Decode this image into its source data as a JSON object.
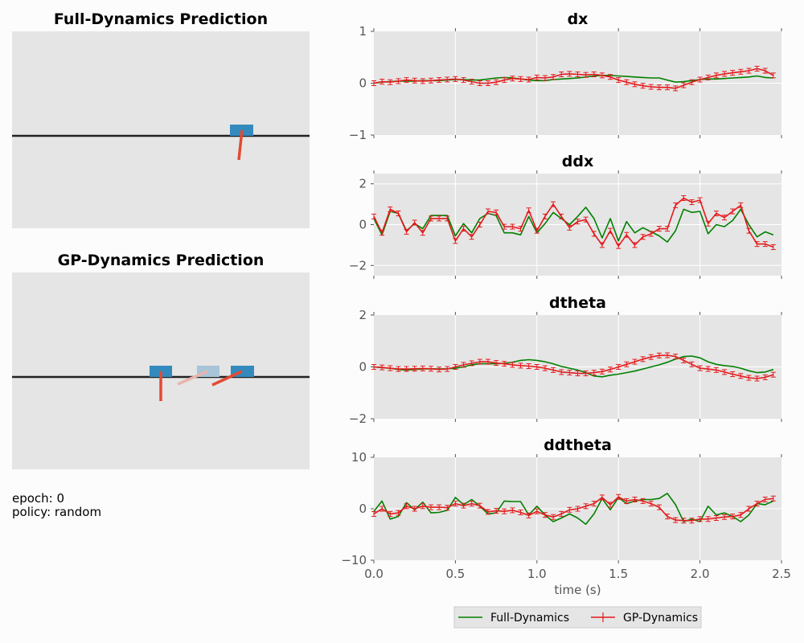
{
  "sim_panels": {
    "full": {
      "title": "Full-Dynamics Prediction"
    },
    "gp": {
      "title": "GP-Dynamics Prediction"
    }
  },
  "info": {
    "epoch": "epoch: 0",
    "policy": "policy: random"
  },
  "colors": {
    "axes_bg": "#e5e5e5",
    "full_dynamics": "#008000",
    "gp_dynamics": "#e41a1c",
    "cart": "#348abd",
    "cart_ghost": "#a7c4d8",
    "pole": "#e24a33",
    "pole_ghost": "#e8b4ac",
    "track": "#222222"
  },
  "chart_data": [
    {
      "type": "line",
      "title": "dx",
      "ylim": [
        -1,
        1
      ],
      "yticks": [
        "1",
        "0",
        "−1"
      ],
      "grid": true,
      "series": [
        {
          "name": "Full-Dynamics",
          "x": [
            0,
            0.05,
            0.1,
            0.15,
            0.2,
            0.25,
            0.3,
            0.35,
            0.4,
            0.45,
            0.5,
            0.55,
            0.6,
            0.65,
            0.7,
            0.75,
            0.8,
            0.85,
            0.9,
            0.95,
            1.0,
            1.05,
            1.1,
            1.15,
            1.2,
            1.25,
            1.3,
            1.35,
            1.4,
            1.45,
            1.5,
            1.55,
            1.6,
            1.65,
            1.7,
            1.75,
            1.8,
            1.85,
            1.9,
            1.95,
            2.0,
            2.05,
            2.1,
            2.15,
            2.2,
            2.25,
            2.3,
            2.35,
            2.4,
            2.45
          ],
          "y": [
            0,
            0.02,
            0.03,
            0.04,
            0.04,
            0.04,
            0.05,
            0.05,
            0.05,
            0.06,
            0.07,
            0.07,
            0.06,
            0.06,
            0.08,
            0.1,
            0.11,
            0.1,
            0.08,
            0.06,
            0.05,
            0.05,
            0.07,
            0.08,
            0.09,
            0.1,
            0.12,
            0.14,
            0.15,
            0.15,
            0.14,
            0.13,
            0.12,
            0.11,
            0.1,
            0.1,
            0.06,
            0.02,
            0.03,
            0.05,
            0.07,
            0.08,
            0.08,
            0.09,
            0.1,
            0.11,
            0.12,
            0.14,
            0.11,
            0.1
          ]
        },
        {
          "name": "GP-Dynamics",
          "x": [
            0,
            0.05,
            0.1,
            0.15,
            0.2,
            0.25,
            0.3,
            0.35,
            0.4,
            0.45,
            0.5,
            0.55,
            0.6,
            0.65,
            0.7,
            0.75,
            0.8,
            0.85,
            0.9,
            0.95,
            1.0,
            1.05,
            1.1,
            1.15,
            1.2,
            1.25,
            1.3,
            1.35,
            1.4,
            1.45,
            1.5,
            1.55,
            1.6,
            1.65,
            1.7,
            1.75,
            1.8,
            1.85,
            1.9,
            1.95,
            2.0,
            2.05,
            2.1,
            2.15,
            2.2,
            2.25,
            2.3,
            2.35,
            2.4,
            2.45
          ],
          "y": [
            0,
            0.03,
            0.02,
            0.04,
            0.06,
            0.05,
            0.04,
            0.05,
            0.06,
            0.07,
            0.08,
            0.06,
            0.03,
            0.0,
            0.0,
            0.02,
            0.06,
            0.09,
            0.08,
            0.07,
            0.11,
            0.1,
            0.12,
            0.17,
            0.18,
            0.17,
            0.16,
            0.17,
            0.15,
            0.12,
            0.06,
            0.02,
            -0.02,
            -0.05,
            -0.07,
            -0.08,
            -0.08,
            -0.1,
            -0.04,
            0.02,
            0.07,
            0.11,
            0.15,
            0.18,
            0.2,
            0.22,
            0.24,
            0.28,
            0.24,
            0.15
          ]
        }
      ]
    },
    {
      "type": "line",
      "title": "ddx",
      "ylim": [
        -2.5,
        2.5
      ],
      "yticks": [
        "2",
        "0",
        "−2"
      ],
      "grid": true,
      "series": [
        {
          "name": "Full-Dynamics",
          "x": [
            0,
            0.05,
            0.1,
            0.15,
            0.2,
            0.25,
            0.3,
            0.35,
            0.4,
            0.45,
            0.5,
            0.55,
            0.6,
            0.65,
            0.7,
            0.75,
            0.8,
            0.85,
            0.9,
            0.95,
            1.0,
            1.05,
            1.1,
            1.15,
            1.2,
            1.25,
            1.3,
            1.35,
            1.4,
            1.45,
            1.5,
            1.55,
            1.6,
            1.65,
            1.7,
            1.75,
            1.8,
            1.85,
            1.9,
            1.95,
            2.0,
            2.05,
            2.1,
            2.15,
            2.2,
            2.25,
            2.3,
            2.35,
            2.4,
            2.45
          ],
          "y": [
            0.3,
            -0.5,
            0.65,
            0.55,
            -0.3,
            0.05,
            -0.2,
            0.45,
            0.45,
            0.45,
            -0.55,
            0.05,
            -0.4,
            0.3,
            0.55,
            0.45,
            -0.4,
            -0.4,
            -0.5,
            0.4,
            -0.4,
            0.05,
            0.6,
            0.3,
            0.0,
            0.4,
            0.85,
            0.3,
            -0.65,
            0.3,
            -0.8,
            0.15,
            -0.4,
            -0.15,
            -0.35,
            -0.55,
            -0.85,
            -0.3,
            0.75,
            0.6,
            0.65,
            -0.45,
            0.0,
            -0.1,
            0.2,
            0.75,
            0.0,
            -0.6,
            -0.35,
            -0.5
          ]
        },
        {
          "name": "GP-Dynamics",
          "x": [
            0,
            0.05,
            0.1,
            0.15,
            0.2,
            0.25,
            0.3,
            0.35,
            0.4,
            0.45,
            0.5,
            0.55,
            0.6,
            0.65,
            0.7,
            0.75,
            0.8,
            0.85,
            0.9,
            0.95,
            1.0,
            1.05,
            1.1,
            1.15,
            1.2,
            1.25,
            1.3,
            1.35,
            1.4,
            1.45,
            1.5,
            1.55,
            1.6,
            1.65,
            1.7,
            1.75,
            1.8,
            1.85,
            1.9,
            1.95,
            2.0,
            2.05,
            2.1,
            2.15,
            2.2,
            2.25,
            2.3,
            2.35,
            2.4,
            2.45
          ],
          "y": [
            0.4,
            -0.4,
            0.75,
            0.55,
            -0.35,
            0.1,
            -0.4,
            0.3,
            0.3,
            0.3,
            -0.8,
            -0.2,
            -0.6,
            0.0,
            0.65,
            0.6,
            -0.1,
            -0.1,
            -0.2,
            0.7,
            -0.3,
            0.4,
            1.0,
            0.4,
            -0.15,
            0.15,
            0.25,
            -0.45,
            -1.0,
            -0.3,
            -1.05,
            -0.5,
            -1.0,
            -0.6,
            -0.45,
            -0.2,
            -0.2,
            0.95,
            1.3,
            1.1,
            1.2,
            0.05,
            0.55,
            0.35,
            0.65,
            0.95,
            -0.3,
            -0.95,
            -0.95,
            -1.1
          ]
        }
      ]
    },
    {
      "type": "line",
      "title": "dtheta",
      "ylim": [
        -2,
        2
      ],
      "yticks": [
        "2",
        "0",
        "−2"
      ],
      "grid": true,
      "series": [
        {
          "name": "Full-Dynamics",
          "x": [
            0,
            0.05,
            0.1,
            0.15,
            0.2,
            0.25,
            0.3,
            0.35,
            0.4,
            0.45,
            0.5,
            0.55,
            0.6,
            0.65,
            0.7,
            0.75,
            0.8,
            0.85,
            0.9,
            0.95,
            1.0,
            1.05,
            1.1,
            1.15,
            1.2,
            1.25,
            1.3,
            1.35,
            1.4,
            1.45,
            1.5,
            1.55,
            1.6,
            1.65,
            1.7,
            1.75,
            1.8,
            1.85,
            1.9,
            1.95,
            2.0,
            2.05,
            2.1,
            2.15,
            2.2,
            2.25,
            2.3,
            2.35,
            2.4,
            2.45
          ],
          "y": [
            0,
            -0.03,
            -0.05,
            -0.1,
            -0.12,
            -0.1,
            -0.08,
            -0.07,
            -0.08,
            -0.07,
            -0.05,
            0.0,
            0.08,
            0.12,
            0.12,
            0.12,
            0.14,
            0.18,
            0.25,
            0.28,
            0.25,
            0.2,
            0.12,
            0.02,
            -0.05,
            -0.12,
            -0.22,
            -0.35,
            -0.38,
            -0.32,
            -0.28,
            -0.22,
            -0.16,
            -0.08,
            0.0,
            0.08,
            0.18,
            0.3,
            0.4,
            0.42,
            0.35,
            0.2,
            0.1,
            0.05,
            0.02,
            -0.05,
            -0.15,
            -0.22,
            -0.2,
            -0.1
          ]
        },
        {
          "name": "GP-Dynamics",
          "x": [
            0,
            0.05,
            0.1,
            0.15,
            0.2,
            0.25,
            0.3,
            0.35,
            0.4,
            0.45,
            0.5,
            0.55,
            0.6,
            0.65,
            0.7,
            0.75,
            0.8,
            0.85,
            0.9,
            0.95,
            1.0,
            1.05,
            1.1,
            1.15,
            1.2,
            1.25,
            1.3,
            1.35,
            1.4,
            1.45,
            1.5,
            1.55,
            1.6,
            1.65,
            1.7,
            1.75,
            1.8,
            1.85,
            1.9,
            1.95,
            2.0,
            2.05,
            2.1,
            2.15,
            2.2,
            2.25,
            2.3,
            2.35,
            2.4,
            2.45
          ],
          "y": [
            0,
            -0.02,
            -0.05,
            -0.08,
            -0.08,
            -0.07,
            -0.06,
            -0.07,
            -0.1,
            -0.08,
            0.0,
            0.08,
            0.14,
            0.2,
            0.2,
            0.15,
            0.12,
            0.08,
            0.05,
            0.03,
            0.0,
            -0.05,
            -0.12,
            -0.2,
            -0.22,
            -0.25,
            -0.25,
            -0.22,
            -0.18,
            -0.1,
            0.0,
            0.1,
            0.2,
            0.3,
            0.38,
            0.44,
            0.45,
            0.4,
            0.25,
            0.1,
            -0.05,
            -0.08,
            -0.12,
            -0.2,
            -0.28,
            -0.35,
            -0.42,
            -0.45,
            -0.4,
            -0.3
          ]
        }
      ]
    },
    {
      "type": "line",
      "title": "ddtheta",
      "ylim": [
        -10,
        10
      ],
      "yticks": [
        "10",
        "0",
        "−10"
      ],
      "xlabel": "time (s)",
      "xlim": [
        0,
        2.5
      ],
      "xticks": [
        "0.0",
        "0.5",
        "1.0",
        "1.5",
        "2.0",
        "2.5"
      ],
      "grid": true,
      "series": [
        {
          "name": "Full-Dynamics",
          "x": [
            0,
            0.05,
            0.1,
            0.15,
            0.2,
            0.25,
            0.3,
            0.35,
            0.4,
            0.45,
            0.5,
            0.55,
            0.6,
            0.65,
            0.7,
            0.75,
            0.8,
            0.85,
            0.9,
            0.95,
            1.0,
            1.05,
            1.1,
            1.15,
            1.2,
            1.25,
            1.3,
            1.35,
            1.4,
            1.45,
            1.5,
            1.55,
            1.6,
            1.65,
            1.7,
            1.75,
            1.8,
            1.85,
            1.9,
            1.95,
            2.0,
            2.05,
            2.1,
            2.15,
            2.2,
            2.25,
            2.3,
            2.35,
            2.4,
            2.45
          ],
          "y": [
            -0.5,
            1.5,
            -2.0,
            -1.5,
            1.2,
            -0.2,
            1.3,
            -0.8,
            -0.7,
            -0.3,
            2.2,
            0.8,
            1.8,
            0.5,
            -1.0,
            -0.8,
            1.5,
            1.4,
            1.4,
            -1.2,
            0.5,
            -1.2,
            -2.5,
            -1.8,
            -1.0,
            -1.8,
            -3.0,
            -1.0,
            2.0,
            -0.2,
            2.2,
            1.0,
            1.5,
            1.8,
            1.8,
            2.0,
            3.0,
            0.8,
            -2.5,
            -2.0,
            -2.5,
            0.5,
            -1.2,
            -0.8,
            -1.5,
            -2.5,
            -1.2,
            1.0,
            0.8,
            1.5
          ]
        },
        {
          "name": "GP-Dynamics",
          "x": [
            0,
            0.05,
            0.1,
            0.15,
            0.2,
            0.25,
            0.3,
            0.35,
            0.4,
            0.45,
            0.5,
            0.55,
            0.6,
            0.65,
            0.7,
            0.75,
            0.8,
            0.85,
            0.9,
            0.95,
            1.0,
            1.05,
            1.1,
            1.15,
            1.2,
            1.25,
            1.3,
            1.35,
            1.4,
            1.45,
            1.5,
            1.55,
            1.6,
            1.65,
            1.7,
            1.75,
            1.8,
            1.85,
            1.9,
            1.95,
            2.0,
            2.05,
            2.1,
            2.15,
            2.2,
            2.25,
            2.3,
            2.35,
            2.4,
            2.45
          ],
          "y": [
            -1.0,
            0.0,
            -1.0,
            -0.8,
            0.5,
            0.0,
            0.5,
            0.3,
            0.3,
            0.2,
            1.0,
            0.6,
            1.0,
            0.6,
            -0.6,
            -0.4,
            -0.5,
            -0.3,
            -0.7,
            -1.3,
            -0.5,
            -1.2,
            -1.6,
            -1.0,
            -0.2,
            0.0,
            0.5,
            1.0,
            2.2,
            0.8,
            2.3,
            1.5,
            1.8,
            1.5,
            1.0,
            0.3,
            -1.5,
            -2.2,
            -2.3,
            -2.3,
            -2.0,
            -2.0,
            -1.8,
            -1.6,
            -1.5,
            -1.2,
            0.0,
            1.0,
            1.8,
            2.0
          ]
        }
      ]
    }
  ],
  "legend": {
    "entries": [
      "Full-Dynamics",
      "GP-Dynamics"
    ],
    "placement": "bottom-center"
  }
}
